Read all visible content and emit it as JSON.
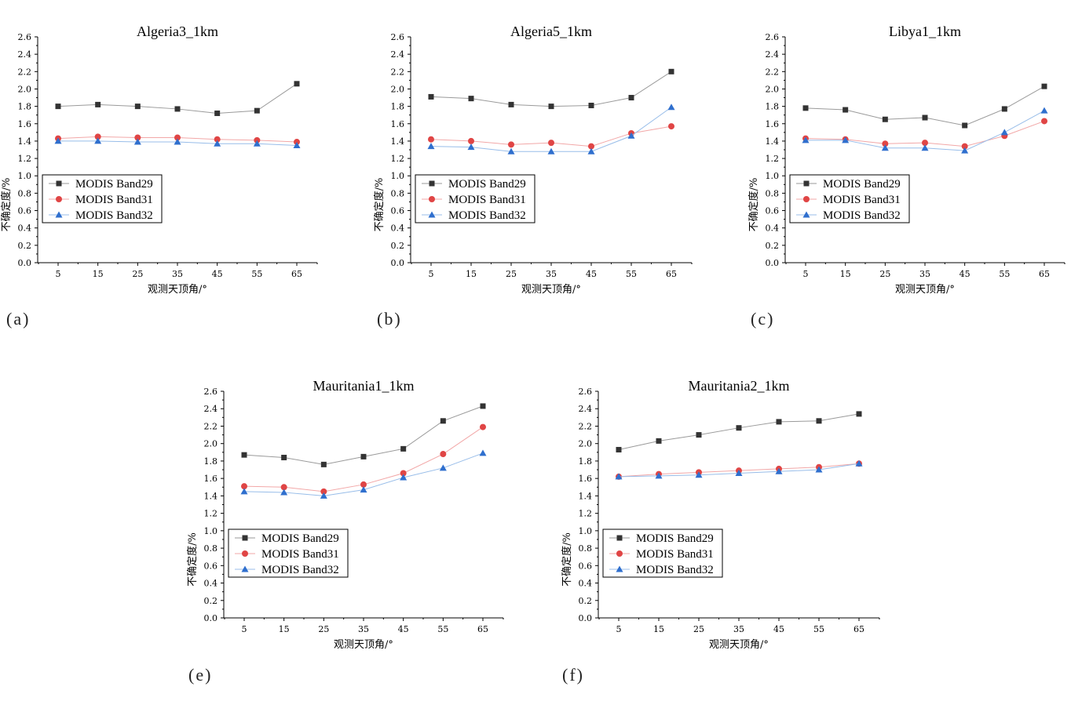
{
  "common": {
    "ylabel": "不确定度/%",
    "xlabel": "观测天顶角/°",
    "y_ticks": [
      "0.0",
      "0.2",
      "0.4",
      "0.6",
      "0.8",
      "1.0",
      "1.2",
      "1.4",
      "1.6",
      "1.8",
      "2.0",
      "2.2",
      "2.4",
      "2.6"
    ],
    "x_ticks": [
      "5",
      "15",
      "25",
      "35",
      "45",
      "55",
      "65"
    ]
  },
  "series_style": [
    {
      "name": "MODIS Band29",
      "color": "#333333",
      "line_color": "#9a9a9a",
      "marker": "square"
    },
    {
      "name": "MODIS Band31",
      "color": "#e04545",
      "line_color": "#f2a7a7",
      "marker": "circle"
    },
    {
      "name": "MODIS Band32",
      "color": "#2f6fce",
      "line_color": "#98bde9",
      "marker": "triangle"
    }
  ],
  "chart_data": [
    {
      "type": "line",
      "panel_label": "(a)",
      "title": "Algeria3_1km",
      "xlabel": "观测天顶角/°",
      "ylabel": "不确定度/%",
      "ylim": [
        0,
        2.6
      ],
      "legend": "lower-left",
      "x": [
        5,
        15,
        25,
        35,
        45,
        55,
        65
      ],
      "series": [
        {
          "name": "MODIS Band29",
          "values": [
            1.8,
            1.82,
            1.8,
            1.77,
            1.72,
            1.75,
            2.06
          ]
        },
        {
          "name": "MODIS Band31",
          "values": [
            1.43,
            1.45,
            1.44,
            1.44,
            1.42,
            1.41,
            1.39
          ]
        },
        {
          "name": "MODIS Band32",
          "values": [
            1.4,
            1.4,
            1.39,
            1.39,
            1.37,
            1.37,
            1.35
          ]
        }
      ]
    },
    {
      "type": "line",
      "panel_label": "(b)",
      "title": "Algeria5_1km",
      "xlabel": "观测天顶角/°",
      "ylabel": "不确定度/%",
      "ylim": [
        0,
        2.6
      ],
      "legend": "lower-left",
      "x": [
        5,
        15,
        25,
        35,
        45,
        55,
        65
      ],
      "series": [
        {
          "name": "MODIS Band29",
          "values": [
            1.91,
            1.89,
            1.82,
            1.8,
            1.81,
            1.9,
            2.2
          ]
        },
        {
          "name": "MODIS Band31",
          "values": [
            1.42,
            1.4,
            1.36,
            1.38,
            1.34,
            1.49,
            1.57
          ]
        },
        {
          "name": "MODIS Band32",
          "values": [
            1.34,
            1.33,
            1.28,
            1.28,
            1.28,
            1.46,
            1.79
          ]
        }
      ]
    },
    {
      "type": "line",
      "panel_label": "(c)",
      "title": "Libya1_1km",
      "xlabel": "观测天顶角/°",
      "ylabel": "不确定度/%",
      "ylim": [
        0,
        2.6
      ],
      "legend": "lower-left",
      "x": [
        5,
        15,
        25,
        35,
        45,
        55,
        65
      ],
      "series": [
        {
          "name": "MODIS Band29",
          "values": [
            1.78,
            1.76,
            1.65,
            1.67,
            1.58,
            1.77,
            2.03
          ]
        },
        {
          "name": "MODIS Band31",
          "values": [
            1.43,
            1.42,
            1.37,
            1.38,
            1.34,
            1.46,
            1.63
          ]
        },
        {
          "name": "MODIS Band32",
          "values": [
            1.41,
            1.41,
            1.32,
            1.32,
            1.29,
            1.5,
            1.75
          ]
        }
      ]
    },
    {
      "type": "line",
      "panel_label": "(e)",
      "title": "Mauritania1_1km",
      "xlabel": "观测天顶角/°",
      "ylabel": "不确定度/%",
      "ylim": [
        0,
        2.6
      ],
      "legend": "lower-left",
      "x": [
        5,
        15,
        25,
        35,
        45,
        55,
        65
      ],
      "series": [
        {
          "name": "MODIS Band29",
          "values": [
            1.87,
            1.84,
            1.76,
            1.85,
            1.94,
            2.26,
            2.43
          ]
        },
        {
          "name": "MODIS Band31",
          "values": [
            1.51,
            1.5,
            1.45,
            1.53,
            1.66,
            1.88,
            2.19
          ]
        },
        {
          "name": "MODIS Band32",
          "values": [
            1.45,
            1.44,
            1.4,
            1.47,
            1.61,
            1.72,
            1.89
          ]
        }
      ]
    },
    {
      "type": "line",
      "panel_label": "(f)",
      "title": "Mauritania2_1km",
      "xlabel": "观测天顶角/°",
      "ylabel": "不确定度/%",
      "ylim": [
        0,
        2.6
      ],
      "legend": "lower-left",
      "x": [
        5,
        15,
        25,
        35,
        45,
        55,
        65
      ],
      "series": [
        {
          "name": "MODIS Band29",
          "values": [
            1.93,
            2.03,
            2.1,
            2.18,
            2.25,
            2.26,
            2.34
          ]
        },
        {
          "name": "MODIS Band31",
          "values": [
            1.62,
            1.65,
            1.67,
            1.69,
            1.71,
            1.73,
            1.77
          ]
        },
        {
          "name": "MODIS Band32",
          "values": [
            1.62,
            1.63,
            1.64,
            1.66,
            1.68,
            1.7,
            1.77
          ]
        }
      ]
    }
  ]
}
